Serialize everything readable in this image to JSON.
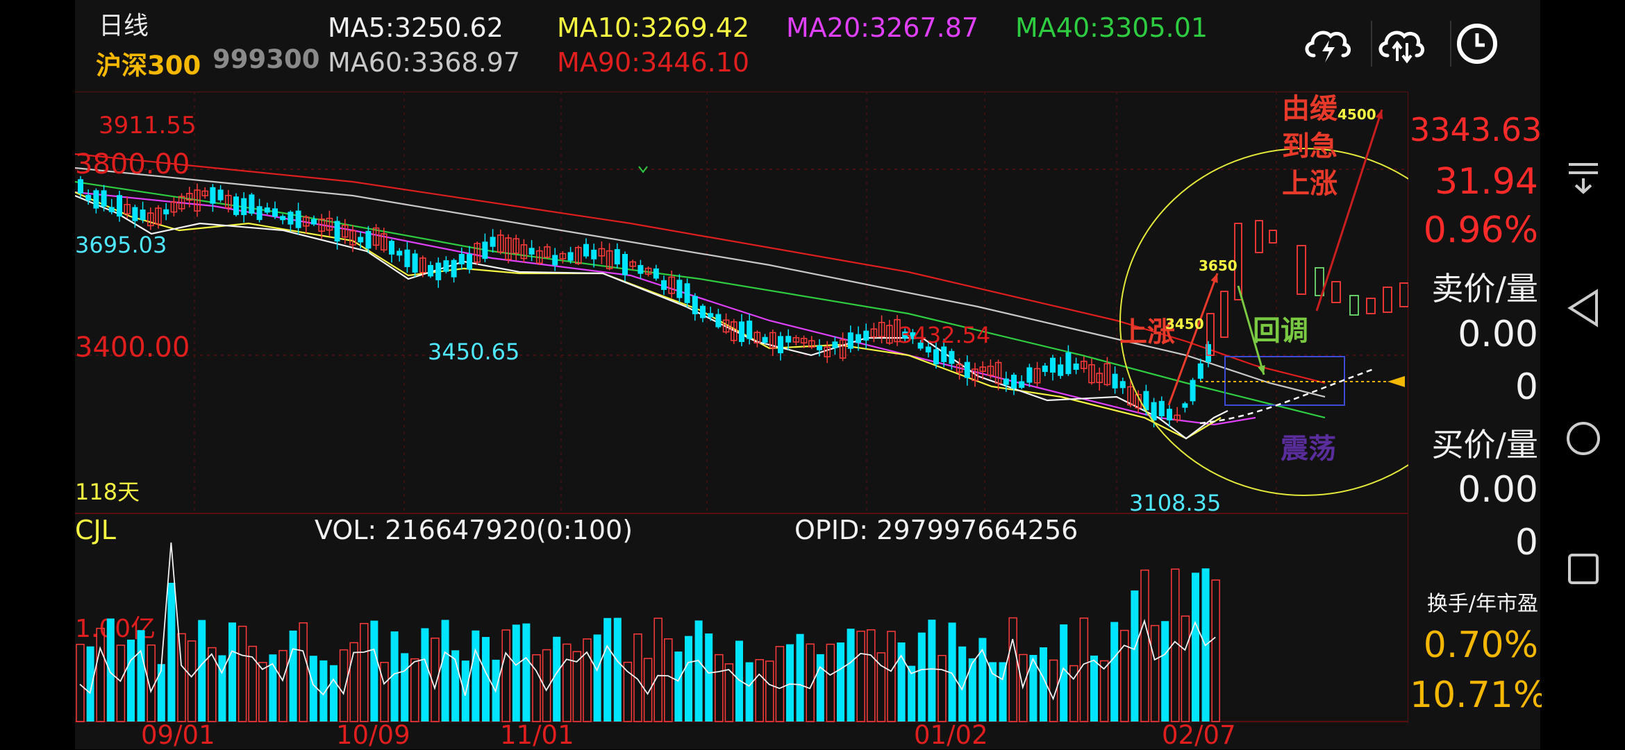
{
  "header": {
    "period": "日线",
    "stock_name": "沪深300",
    "stock_code": "999300",
    "ma": [
      {
        "label": "MA5:3250.62",
        "color": "#f2f2f2"
      },
      {
        "label": "MA10:3269.42",
        "color": "#f5f542"
      },
      {
        "label": "MA20:3267.87",
        "color": "#e040fb"
      },
      {
        "label": "MA40:3305.01",
        "color": "#2ecc40"
      },
      {
        "label": "MA60:3368.97",
        "color": "#c8c8c8"
      },
      {
        "label": "MA90:3446.10",
        "color": "#e01e1e"
      }
    ],
    "icons": [
      "cloud-flash-icon",
      "cloud-sync-icon",
      "clock-icon"
    ]
  },
  "chart": {
    "price_labels": {
      "high": "3911.55",
      "left_top": "3800.00",
      "left_low": "3695.03",
      "mid_low": "3450.65",
      "left_mid": "3400.00",
      "mid_high": "3432.54",
      "bottom_low": "3108.35",
      "days": "118天"
    },
    "annotations": {
      "rise": "上涨",
      "pullback": "回调",
      "slow_to_fast_1": "由缓",
      "slow_to_fast_2": "到急",
      "slow_to_fast_3": "上涨",
      "consolidation": "震荡",
      "t3450": "3450",
      "t3650": "3650",
      "t4500": "4500"
    },
    "colors": {
      "up": "#ff3b3b",
      "down": "#00e5ff",
      "ann": "#e83a2a",
      "green_ann": "#7ac943",
      "purple_ann": "#5a2d9c"
    }
  },
  "volume": {
    "title": "CJL",
    "vol": "VOL: 216647920(0:100)",
    "opid": "OPID: 297997664256",
    "scale": "1.00亿"
  },
  "x_axis": [
    "09/01",
    "10/09",
    "11/01",
    "01/02",
    "02/07"
  ],
  "side_panel": {
    "price": "3343.63",
    "change": "31.94",
    "pct": "0.96%",
    "sell_label": "卖价/量",
    "sell_price": "0.00",
    "sell_vol": "0",
    "buy_label": "买价/量",
    "buy_price": "0.00",
    "buy_vol": "0",
    "turnover_label": "换手/年市盈",
    "turnover": "0.70%",
    "pe": "10.71%"
  },
  "nav": [
    "menu-collapse-icon",
    "back-icon",
    "home-icon",
    "recents-icon"
  ]
}
